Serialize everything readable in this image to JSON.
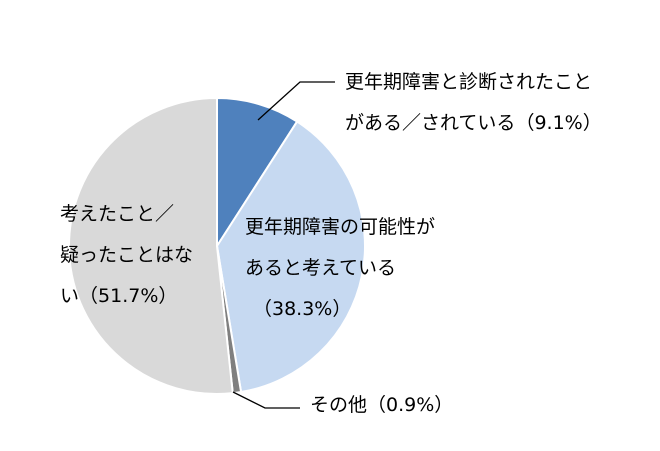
{
  "chart_data": {
    "type": "pie",
    "categories": [
      "更年期障害と診断されたこと\nがある／されている",
      "更年期障害の可能性が\nあると考えている",
      "その他",
      "考えたこと／\n疑ったことはな\nい"
    ],
    "values": [
      9.1,
      38.3,
      0.9,
      51.7
    ],
    "value_labels": [
      "（9.1%）",
      "（38.3%）",
      "（0.9%）",
      "（51.7%）"
    ],
    "colors": [
      "#4f81bd",
      "#c6d9f1",
      "#7f7f7f",
      "#d9d9d9"
    ]
  }
}
